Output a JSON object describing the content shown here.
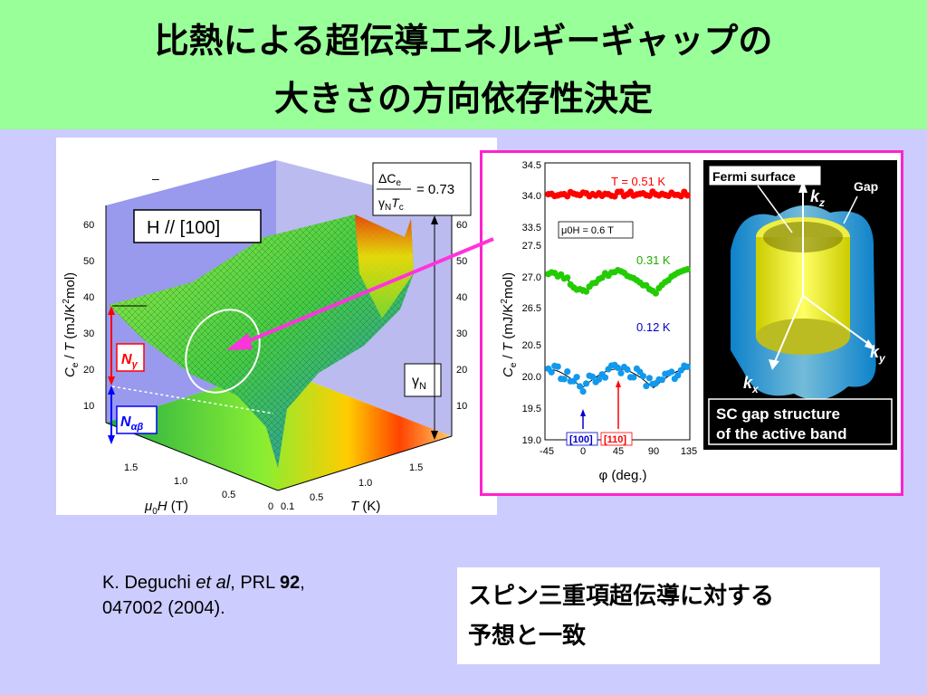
{
  "slide": {
    "title_line1": "比熱による超伝導エネルギーギャップの",
    "title_line2": "大きさの方向依存性決定",
    "citation_line1_a": "K. Deguchi ",
    "citation_line1_b": "et al",
    "citation_line1_c": ", PRL ",
    "citation_line1_d": "92",
    "citation_line1_e": ",",
    "citation_line2": "047002 (2004).",
    "conclusion_line1": "スピン三重項超伝導に対する",
    "conclusion_line2": "予想と一致"
  },
  "left_plot": {
    "field_label": "H // [100]",
    "dash_mark": "–",
    "y_ticks": [
      "60",
      "50",
      "40",
      "30",
      "20",
      "10"
    ],
    "right_ticks": [
      "60",
      "50",
      "40",
      "30",
      "20",
      "10"
    ],
    "h_ticks": [
      "1.5",
      "1.0",
      "0.5",
      "0"
    ],
    "t_ticks": [
      "0.1",
      "0.5",
      "1.0",
      "1.5"
    ],
    "ratio_value": "= 0.73",
    "n_gamma": "N",
    "n_alphabeta": "N",
    "gamma_n": "γ",
    "gamma_n_sub": "N",
    "colors": {
      "surface": "#6fdd3c",
      "red_arrow": "#ff0000",
      "blue_arrow": "#0000ff",
      "floor_hot": "#ff3300"
    }
  },
  "right_plot": {
    "y_ticks": [
      "34.5",
      "34.0",
      "33.5",
      "27.5",
      "27.0",
      "26.5",
      "20.5",
      "20.0",
      "19.5",
      "19.0"
    ],
    "x_ticks": [
      "-45",
      "0",
      "45",
      "90",
      "135"
    ],
    "x_label": "φ (deg.)",
    "field_note": "μ0H = 0.6 T",
    "series_labels": [
      "T = 0.51 K",
      "0.31 K",
      "0.12 K"
    ],
    "direction_labels": [
      "[100]",
      "[110]"
    ],
    "colors": {
      "t051": "#ff0000",
      "t031": "#22cc00",
      "t012": "#1199ee",
      "label100": "#0000cc",
      "label110": "#ff0000"
    }
  },
  "gap_panel": {
    "fermi_label": "Fermi surface",
    "gap_label": "Gap",
    "kz": "k",
    "kz_sub": "z",
    "ky": "k",
    "ky_sub": "y",
    "kx": "k",
    "kx_sub": "x",
    "caption_line1": "SC gap structure",
    "caption_line2": "of the active band"
  },
  "chart_data": [
    {
      "type": "scatter",
      "series": [
        {
          "name": "T = 0.51 K",
          "x": [
            -45,
            0,
            45,
            90,
            135
          ],
          "y": [
            34.0,
            34.0,
            34.0,
            34.0,
            34.0
          ]
        },
        {
          "name": "0.31 K",
          "x": [
            -45,
            0,
            45,
            90,
            135
          ],
          "y": [
            27.05,
            26.7,
            27.05,
            26.7,
            27.05
          ]
        },
        {
          "name": "0.12 K",
          "x": [
            -45,
            0,
            45,
            90,
            135
          ],
          "y": [
            20.1,
            19.8,
            20.1,
            19.8,
            20.1
          ]
        }
      ],
      "xlim": [
        -45,
        135
      ],
      "xticks": [
        -45,
        0,
        45,
        90,
        135
      ]
    }
  ]
}
